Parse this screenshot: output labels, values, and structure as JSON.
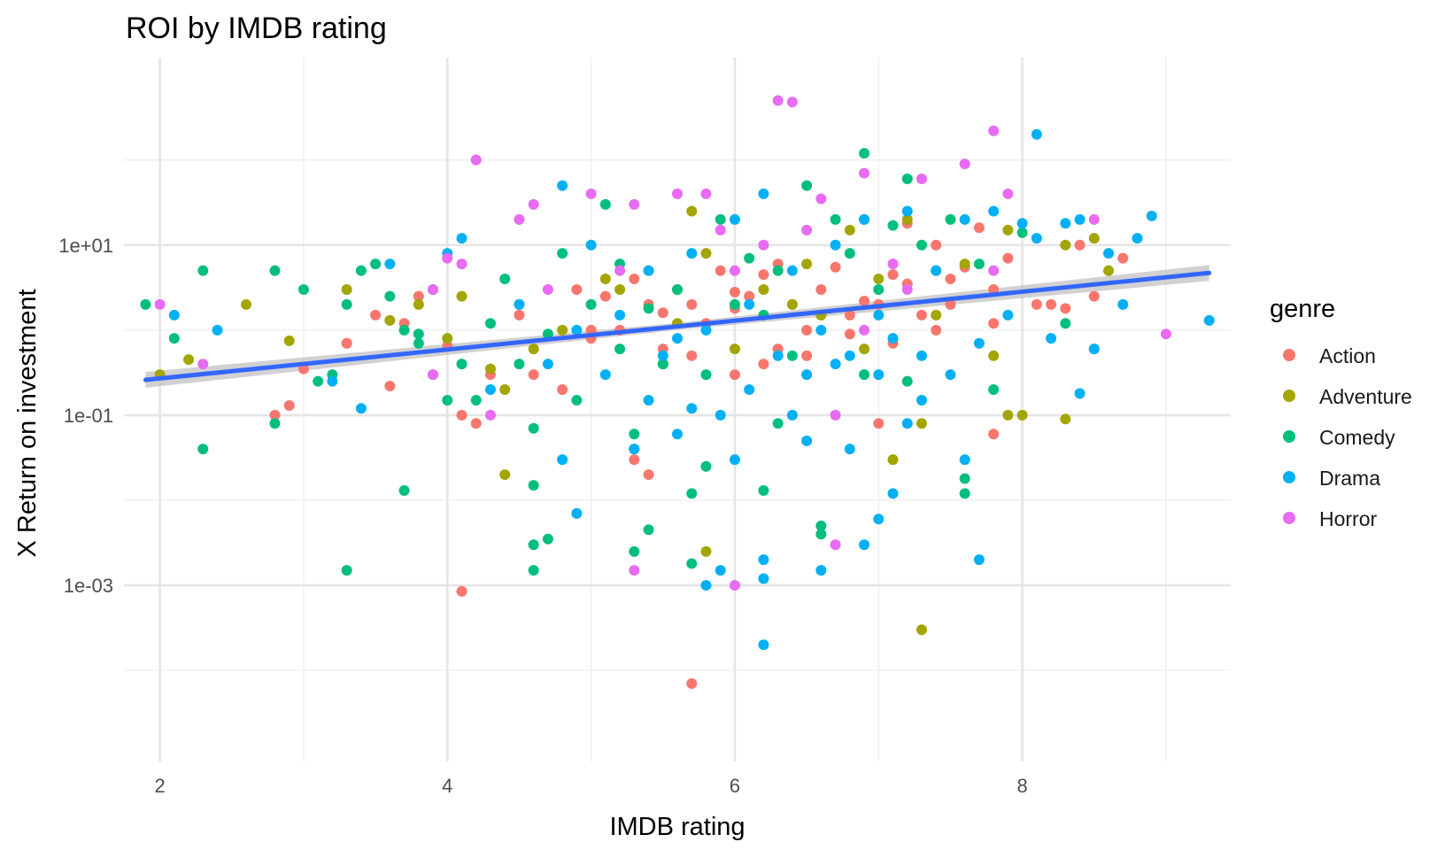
{
  "chart_data": {
    "type": "scatter",
    "title": "ROI by IMDB rating",
    "xlabel": "IMDB rating",
    "ylabel": "X Return on investment",
    "xlim": [
      1.75,
      9.45
    ],
    "ylim": [
      8.5e-06,
      1600
    ],
    "y_scale": "log10",
    "x_ticks": [
      2,
      4,
      6,
      8
    ],
    "x_tick_labels": [
      "2",
      "4",
      "6",
      "8"
    ],
    "y_ticks": [
      0.001,
      0.1,
      10
    ],
    "y_tick_labels": [
      "1e-03",
      "1e-01",
      "1e+01"
    ],
    "grid": true,
    "legend": {
      "title": "genre",
      "position": "right"
    },
    "trend_line": {
      "type": "linear fit (log scale) with confidence band",
      "x": [
        1.9,
        9.3
      ],
      "y": [
        0.26,
        4.7
      ],
      "color": "#3366FF"
    },
    "series": [
      {
        "name": "Action",
        "color": "#F8766D",
        "x": [
          2.8,
          2.9,
          3.0,
          3.3,
          3.5,
          3.6,
          3.7,
          3.8,
          4.0,
          4.1,
          4.2,
          4.3,
          4.5,
          4.6,
          4.8,
          4.9,
          5.0,
          5.1,
          5.2,
          5.3,
          5.4,
          5.5,
          5.6,
          5.7,
          5.8,
          5.9,
          6.0,
          6.1,
          6.2,
          6.3,
          6.4,
          6.5,
          6.6,
          6.7,
          6.8,
          6.9,
          7.0,
          7.1,
          7.2,
          7.3,
          7.4,
          7.5,
          7.6,
          7.7,
          7.8,
          7.9,
          8.1,
          8.2,
          8.3,
          8.4,
          8.5,
          8.7,
          4.1,
          5.7,
          5.4,
          5.3,
          7.8,
          7.0,
          3.3,
          5.0,
          5.7,
          6.0,
          6.2,
          6.5,
          6.8,
          7.1,
          7.4,
          7.8,
          6.3,
          6.6,
          6.9,
          7.2,
          7.5,
          5.5,
          6.0
        ],
        "y": [
          0.1,
          0.13,
          0.35,
          0.7,
          1.5,
          0.22,
          1.2,
          2.5,
          0.65,
          0.1,
          0.08,
          0.3,
          1.5,
          0.3,
          0.2,
          3.0,
          1.0,
          2.5,
          1.0,
          4.0,
          2.0,
          0.6,
          3.0,
          2.0,
          1.2,
          5.0,
          1.8,
          2.5,
          4.5,
          6.0,
          2.0,
          1.0,
          3.0,
          5.5,
          1.5,
          20.0,
          2.0,
          4.5,
          18.0,
          1.5,
          10.0,
          2.0,
          5.5,
          16.0,
          3.0,
          7.0,
          2.0,
          2.0,
          1.8,
          10.0,
          2.5,
          7.0,
          0.00085,
          7e-05,
          0.02,
          0.03,
          0.06,
          0.08,
          0.7,
          0.8,
          0.5,
          0.3,
          0.4,
          0.5,
          0.9,
          0.7,
          1.0,
          1.2,
          0.6,
          1.5,
          2.2,
          3.5,
          4.0,
          1.6,
          2.8
        ]
      },
      {
        "name": "Adventure",
        "color": "#A3A500",
        "x": [
          2.0,
          2.2,
          2.6,
          2.9,
          3.3,
          3.6,
          3.8,
          3.9,
          4.0,
          4.1,
          4.3,
          4.4,
          4.6,
          4.8,
          5.0,
          5.1,
          5.2,
          5.4,
          5.5,
          5.6,
          5.7,
          5.8,
          6.0,
          6.2,
          6.4,
          6.5,
          6.6,
          6.8,
          6.9,
          7.0,
          7.2,
          7.3,
          7.4,
          7.6,
          7.8,
          7.9,
          8.0,
          8.3,
          8.5,
          8.6,
          4.4,
          5.8,
          7.1,
          7.3,
          7.9,
          8.3
        ],
        "y": [
          0.3,
          0.45,
          2.0,
          0.75,
          3.0,
          1.3,
          2.0,
          0.3,
          0.8,
          2.5,
          0.35,
          0.2,
          0.6,
          1.0,
          2.0,
          4.0,
          3.0,
          5.0,
          0.4,
          1.2,
          25.0,
          8.0,
          0.6,
          3.0,
          2.0,
          6.0,
          1.5,
          15.0,
          0.6,
          4.0,
          20.0,
          0.08,
          1.5,
          6.0,
          0.5,
          15.0,
          0.1,
          0.09,
          12.0,
          5.0,
          0.02,
          0.0025,
          0.03,
          0.0003,
          0.1,
          10.0
        ]
      },
      {
        "name": "Comedy",
        "color": "#00BF7D",
        "x": [
          1.9,
          2.1,
          2.3,
          2.3,
          2.8,
          2.8,
          3.0,
          3.1,
          3.2,
          3.3,
          3.4,
          3.5,
          3.6,
          3.7,
          3.8,
          3.9,
          4.0,
          4.1,
          4.2,
          4.3,
          4.4,
          4.5,
          4.6,
          4.7,
          4.8,
          4.9,
          5.0,
          5.1,
          5.2,
          5.3,
          5.4,
          5.5,
          5.6,
          5.7,
          5.8,
          5.9,
          6.0,
          6.1,
          6.2,
          6.3,
          6.4,
          6.5,
          6.6,
          6.7,
          6.8,
          6.9,
          7.0,
          7.1,
          7.2,
          7.3,
          7.4,
          7.5,
          7.6,
          7.7,
          7.8,
          8.0,
          8.3,
          3.3,
          4.6,
          4.6,
          4.7,
          5.3,
          5.4,
          5.7,
          6.2,
          6.6,
          7.6,
          3.7,
          4.6,
          5.5,
          6.3,
          6.9,
          7.2,
          5.2,
          5.8,
          3.8,
          4.5
        ],
        "y": [
          2.0,
          0.8,
          5.0,
          0.04,
          5.0,
          0.08,
          3.0,
          0.25,
          0.3,
          2.0,
          5.0,
          6.0,
          2.5,
          1.0,
          0.9,
          3.0,
          0.15,
          0.4,
          0.15,
          1.2,
          4.0,
          2.0,
          0.07,
          0.9,
          8.0,
          0.15,
          2.0,
          30.0,
          6.0,
          0.06,
          1.8,
          0.4,
          3.0,
          0.012,
          0.025,
          20.0,
          2.0,
          7.0,
          1.5,
          5.0,
          0.5,
          50.0,
          0.004,
          20.0,
          8.0,
          120.0,
          3.0,
          17.0,
          60.0,
          10.0,
          5.0,
          20.0,
          0.012,
          6.0,
          0.2,
          14.0,
          1.2,
          0.0015,
          0.0015,
          0.003,
          0.0035,
          0.0025,
          0.0045,
          0.0018,
          0.013,
          0.005,
          0.018,
          0.013,
          0.015,
          0.4,
          0.08,
          0.3,
          0.25,
          0.6,
          0.3,
          0.7,
          0.4
        ]
      },
      {
        "name": "Drama",
        "color": "#00B0F6",
        "x": [
          2.1,
          2.4,
          3.2,
          3.4,
          3.6,
          4.0,
          4.1,
          4.3,
          4.5,
          4.7,
          4.8,
          4.9,
          5.0,
          5.1,
          5.2,
          5.3,
          5.4,
          5.5,
          5.6,
          5.7,
          5.8,
          5.9,
          6.0,
          6.1,
          6.2,
          6.3,
          6.4,
          6.5,
          6.6,
          6.7,
          6.8,
          6.9,
          7.0,
          7.1,
          7.2,
          7.3,
          7.4,
          7.5,
          7.6,
          7.7,
          7.8,
          7.9,
          8.0,
          8.1,
          8.2,
          8.3,
          8.4,
          8.5,
          8.6,
          8.7,
          8.8,
          8.9,
          9.3,
          4.9,
          5.8,
          6.2,
          6.2,
          6.6,
          7.0,
          7.7,
          5.9,
          6.2,
          8.1,
          6.9,
          7.1,
          4.8,
          6.0,
          6.5,
          7.2,
          8.4,
          8.5,
          5.3,
          5.6,
          6.8,
          7.6,
          5.4,
          5.7,
          6.1,
          6.4,
          6.7,
          7.0,
          7.3
        ],
        "y": [
          1.5,
          1.0,
          0.25,
          0.12,
          6.0,
          8.0,
          12.0,
          0.2,
          2.0,
          0.4,
          50.0,
          1.0,
          10.0,
          0.3,
          1.5,
          0.04,
          5.0,
          0.5,
          0.8,
          8.0,
          1.0,
          0.1,
          20.0,
          2.0,
          40.0,
          0.5,
          5.0,
          0.3,
          1.0,
          10.0,
          0.5,
          20.0,
          1.5,
          0.8,
          25.0,
          0.15,
          5.0,
          0.3,
          20.0,
          0.7,
          25.0,
          1.5,
          18.0,
          200.0,
          0.8,
          18.0,
          20.0,
          0.6,
          8.0,
          2.0,
          12.0,
          22.0,
          1.3,
          0.007,
          0.001,
          0.0002,
          0.0012,
          0.0015,
          0.006,
          0.002,
          0.0015,
          0.002,
          12.0,
          0.003,
          0.012,
          0.03,
          0.03,
          0.05,
          0.08,
          0.18,
          0.6,
          0.04,
          0.06,
          0.04,
          0.03,
          0.15,
          0.12,
          0.2,
          0.1,
          0.4,
          0.3,
          0.5
        ]
      },
      {
        "name": "Horror",
        "color": "#E76BF3",
        "x": [
          2.0,
          2.3,
          3.9,
          3.9,
          4.0,
          4.2,
          4.5,
          4.6,
          4.7,
          5.0,
          5.2,
          5.3,
          5.6,
          5.8,
          5.9,
          6.0,
          6.2,
          6.3,
          6.4,
          6.5,
          6.6,
          6.7,
          6.9,
          7.1,
          7.3,
          7.6,
          7.8,
          7.8,
          7.9,
          8.5,
          9.0,
          4.1,
          5.3,
          6.0,
          6.7,
          6.9,
          7.2,
          4.3
        ],
        "y": [
          2.0,
          0.4,
          3.0,
          0.3,
          7.0,
          100.0,
          20.0,
          30.0,
          3.0,
          40.0,
          5.0,
          30.0,
          40.0,
          40.0,
          15.0,
          5.0,
          10.0,
          500.0,
          480.0,
          15.0,
          35.0,
          0.1,
          70.0,
          6.0,
          60.0,
          90.0,
          220.0,
          5.0,
          40.0,
          20.0,
          0.9,
          6.0,
          0.0015,
          0.001,
          0.003,
          1.0,
          3.0,
          0.1
        ]
      }
    ]
  }
}
